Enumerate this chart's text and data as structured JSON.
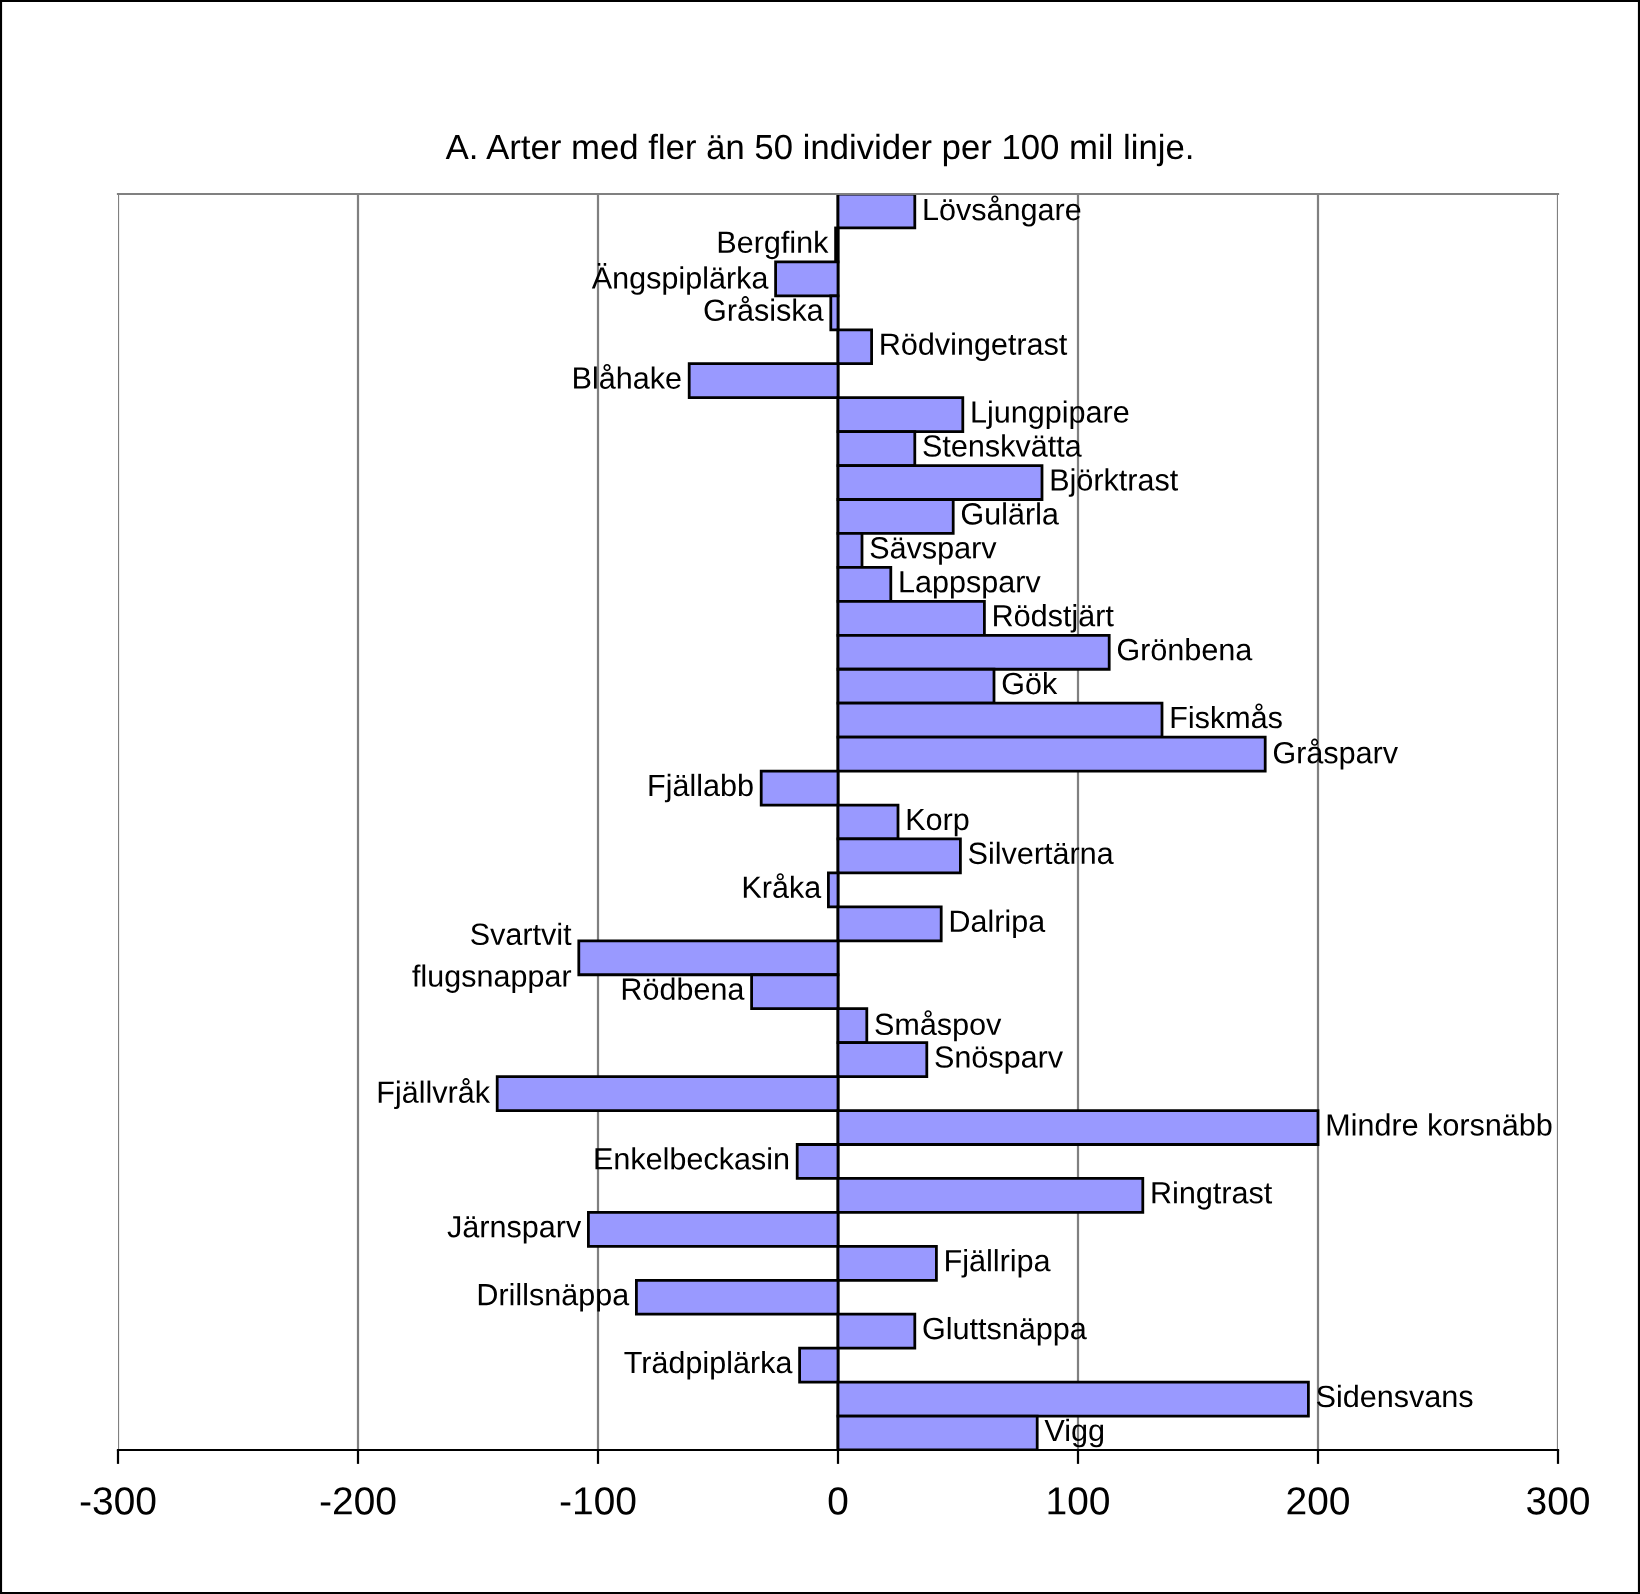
{
  "chart_data": {
    "type": "bar",
    "orientation": "horizontal",
    "title": "A. Arter med fler än 50 individer per 100 mil linje.",
    "categories": [
      "Lövsångare",
      "Bergfink",
      "Ängspiplärka",
      "Gråsiska",
      "Rödvingetrast",
      "Blåhake",
      "Ljungpipare",
      "Stenskvätta",
      "Björktrast",
      "Gulärla",
      "Sävsparv",
      "Lappsparv",
      "Rödstjärt",
      "Grönbena",
      "Gök",
      "Fiskmås",
      "Gråsparv",
      "Fjällabb",
      "Korp",
      "Silvertärna",
      "Kråka",
      "Dalripa",
      "Svartvit\nflugsnappar",
      "Rödbena",
      "Småspov",
      "Snösparv",
      "Fjällvråk",
      "Mindre korsnäbb",
      "Enkelbeckasin",
      "Ringtrast",
      "Järnsparv",
      "Fjällripa",
      "Drillsnäppa",
      "Gluttsnäppa",
      "Trädpiplärka",
      "Sidensvans",
      "Vigg"
    ],
    "values": [
      32,
      -1,
      -26,
      -3,
      14,
      -62,
      52,
      32,
      85,
      48,
      10,
      22,
      61,
      113,
      65,
      135,
      178,
      -32,
      25,
      51,
      -4,
      43,
      -108,
      -36,
      12,
      37,
      -142,
      200,
      -17,
      127,
      -104,
      41,
      -84,
      32,
      -16,
      196,
      83
    ],
    "color": "#9999ff",
    "xlim": [
      -300,
      300
    ],
    "xticks": [
      -300,
      -200,
      -100,
      0,
      100,
      200,
      300
    ],
    "grid": "x",
    "tick_labels": "x"
  }
}
